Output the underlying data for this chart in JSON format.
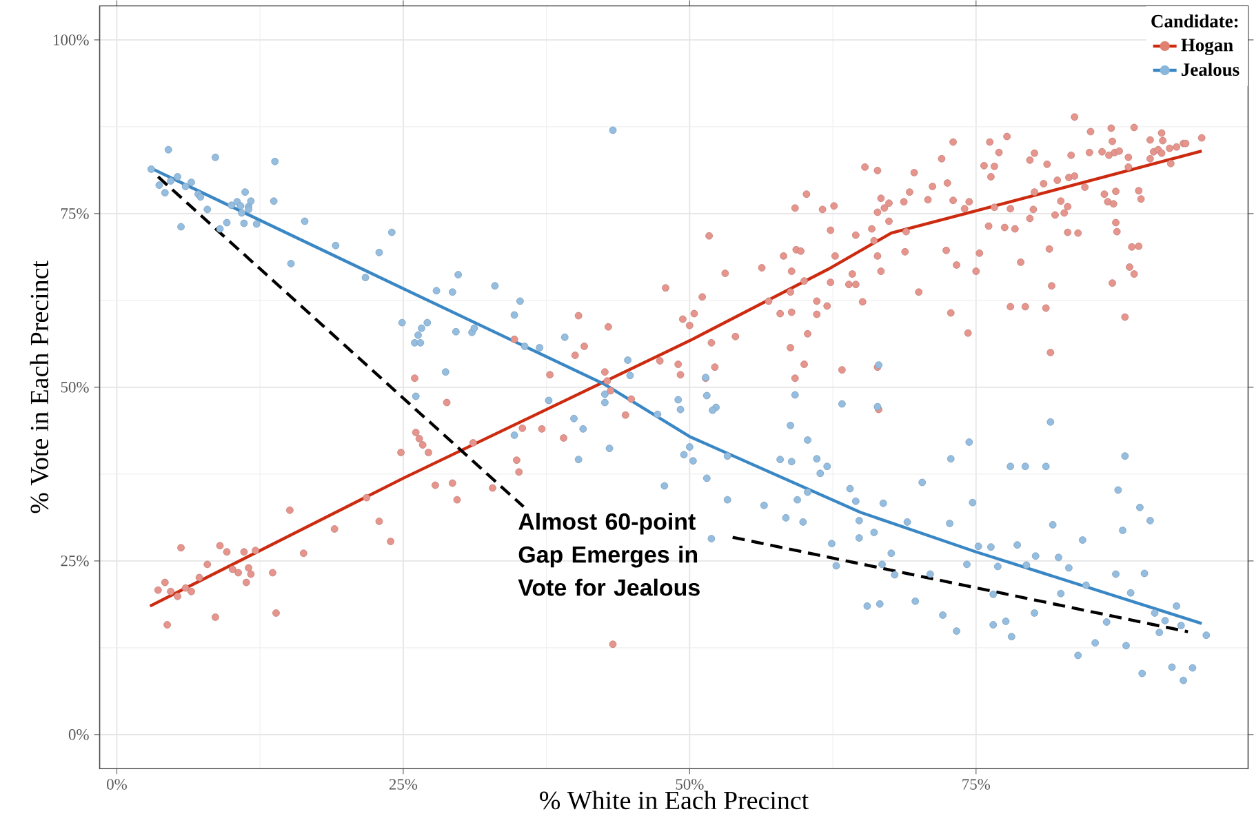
{
  "chart_data": {
    "type": "scatter",
    "xlabel": "% White in Each Precinct",
    "ylabel": "% Vote in Each Precinct",
    "legend_title": "Candidate:",
    "xlim": [
      -1.5,
      98.75
    ],
    "ylim": [
      -4.9,
      104.9
    ],
    "xticks": [
      {
        "value": 0,
        "label": "0%"
      },
      {
        "value": 25,
        "label": "25%"
      },
      {
        "value": 50,
        "label": "50%"
      },
      {
        "value": 75,
        "label": "75%"
      }
    ],
    "yticks": [
      {
        "value": 0,
        "label": "0%"
      },
      {
        "value": 25,
        "label": "25%"
      },
      {
        "value": 50,
        "label": "50%"
      },
      {
        "value": 75,
        "label": "75%"
      },
      {
        "value": 100,
        "label": "100%"
      }
    ],
    "grid": true,
    "legend": "top right",
    "annotations": [
      "Almost 60-point Gap Emerges in Vote for Jealous"
    ],
    "series": [
      {
        "marker": "circle",
        "color": "#e6958d",
        "x": [
          3.6,
          4.2,
          4.4,
          4.7,
          5.3,
          5.6,
          6.0,
          6.5,
          7.2,
          7.9,
          8.6,
          9.0,
          9.6,
          10.1,
          10.6,
          11.1,
          11.3,
          11.5,
          11.7,
          12.1,
          13.6,
          13.9,
          15.1,
          16.3,
          19.0,
          21.8,
          22.9,
          23.9,
          24.8,
          26.0,
          26.1,
          26.4,
          26.7,
          27.2,
          27.8,
          28.8,
          29.3,
          29.7,
          31.1,
          32.8,
          34.7,
          34.9,
          35.1,
          35.4,
          37.1,
          37.8,
          39.0,
          40.0,
          40.3,
          40.8,
          42.6,
          42.8,
          42.9,
          43.1,
          43.3,
          44.4,
          44.9,
          47.4,
          47.9,
          49.0,
          49.2,
          49.4,
          50.0,
          50.4,
          51.1,
          51.4,
          51.7,
          51.9,
          52.2,
          53.1,
          54.0,
          56.3,
          56.9,
          57.9,
          58.2,
          58.8,
          58.8,
          58.9,
          58.9,
          59.2,
          59.2,
          59.3,
          59.7,
          60.0,
          60.0,
          60.2,
          60.3,
          61.1,
          61.1,
          61.6,
          62.0,
          62.3,
          62.3,
          62.6,
          62.7,
          63.3,
          63.9,
          64.2,
          64.5,
          64.5,
          65.1,
          65.3,
          65.9,
          66.1,
          66.4,
          66.4,
          66.4,
          66.5,
          66.4,
          66.7,
          66.7,
          67.0,
          67.4,
          67.4,
          68.7,
          68.8,
          68.9,
          69.2,
          69.6,
          70.0,
          70.8,
          71.2,
          72.0,
          72.4,
          72.5,
          72.8,
          73.0,
          73.0,
          73.3,
          74.0,
          74.3,
          74.4,
          75.0,
          75.3,
          75.7,
          76.1,
          76.2,
          76.3,
          76.6,
          76.6,
          77.0,
          77.5,
          77.7,
          78.0,
          78.0,
          78.4,
          78.9,
          79.3,
          79.7,
          79.7,
          80.0,
          80.1,
          80.1,
          80.9,
          81.1,
          81.2,
          81.4,
          81.5,
          81.6,
          81.9,
          82.1,
          82.4,
          82.7,
          83.0,
          83.0,
          83.1,
          83.3,
          83.6,
          83.6,
          83.9,
          84.5,
          84.9,
          85.0,
          86.0,
          86.2,
          86.5,
          86.6,
          86.8,
          86.9,
          86.9,
          87.0,
          87.1,
          87.2,
          87.2,
          87.3,
          87.5,
          88.0,
          88.3,
          88.3,
          88.4,
          88.6,
          88.8,
          88.8,
          89.2,
          89.2,
          89.4,
          90.2,
          90.2,
          90.5,
          90.9,
          91.2,
          91.3,
          91.2,
          91.9,
          92.0,
          92.5,
          93.1,
          93.3,
          94.7
        ],
        "values": [
          20.8,
          21.9,
          15.8,
          20.6,
          19.9,
          26.9,
          21.1,
          20.6,
          22.6,
          24.5,
          16.9,
          27.2,
          26.3,
          23.8,
          23.3,
          26.3,
          21.9,
          24.0,
          23.1,
          26.5,
          23.3,
          17.5,
          32.3,
          26.1,
          29.6,
          34.1,
          30.7,
          27.8,
          40.6,
          51.3,
          43.5,
          42.6,
          41.7,
          40.6,
          35.9,
          47.8,
          36.2,
          33.8,
          42.0,
          35.5,
          56.9,
          39.5,
          37.8,
          44.1,
          44.0,
          51.8,
          42.7,
          54.6,
          60.3,
          55.9,
          52.2,
          50.9,
          58.7,
          49.5,
          13.0,
          46.0,
          48.3,
          53.8,
          64.3,
          53.3,
          51.8,
          59.8,
          58.9,
          60.6,
          63.0,
          51.3,
          71.8,
          56.4,
          52.9,
          66.4,
          57.3,
          67.2,
          62.4,
          60.6,
          68.9,
          55.7,
          63.7,
          60.8,
          66.7,
          75.8,
          51.3,
          69.8,
          69.6,
          53.3,
          65.3,
          77.8,
          57.7,
          60.5,
          62.4,
          75.6,
          61.7,
          72.6,
          65.1,
          76.1,
          68.9,
          52.5,
          64.8,
          66.3,
          71.9,
          64.8,
          62.3,
          81.7,
          72.8,
          71.1,
          68.9,
          75.2,
          52.9,
          46.8,
          81.2,
          66.7,
          77.2,
          75.8,
          73.9,
          76.5,
          76.7,
          69.5,
          72.4,
          78.1,
          80.9,
          63.7,
          77.0,
          78.9,
          82.9,
          69.7,
          79.4,
          60.7,
          85.3,
          76.9,
          67.6,
          75.7,
          57.8,
          76.7,
          66.7,
          69.3,
          81.9,
          73.2,
          85.3,
          80.3,
          81.8,
          75.9,
          83.8,
          73.0,
          86.1,
          61.6,
          75.7,
          72.8,
          68.0,
          61.6,
          74.3,
          82.7,
          75.6,
          78.1,
          83.7,
          79.3,
          61.4,
          82.1,
          69.9,
          55.0,
          64.6,
          74.8,
          79.8,
          76.8,
          75.1,
          72.3,
          76.0,
          80.2,
          83.4,
          80.4,
          88.9,
          72.2,
          78.8,
          83.8,
          86.8,
          83.9,
          77.8,
          76.7,
          83.4,
          87.3,
          85.4,
          65.0,
          76.4,
          83.8,
          73.7,
          78.2,
          72.4,
          84.0,
          60.1,
          83.1,
          81.7,
          67.3,
          70.2,
          87.4,
          66.3,
          70.3,
          78.3,
          77.1,
          85.6,
          82.9,
          83.9,
          84.2,
          86.6,
          85.5,
          83.7,
          84.4,
          82.2,
          84.6,
          85.1,
          85.1,
          85.9
        ]
      },
      {
        "marker": "circle",
        "color": "#94bde0",
        "x": [
          3.0,
          3.7,
          4.2,
          4.5,
          4.7,
          5.3,
          5.6,
          6.0,
          6.5,
          7.1,
          7.3,
          7.9,
          8.6,
          9.0,
          9.6,
          10.0,
          10.5,
          10.8,
          10.9,
          11.1,
          11.2,
          11.5,
          11.5,
          11.7,
          12.2,
          13.7,
          13.8,
          15.2,
          16.4,
          19.1,
          21.7,
          22.9,
          24.0,
          24.9,
          26.0,
          26.3,
          26.5,
          26.6,
          27.1,
          26.1,
          27.9,
          28.7,
          29.3,
          29.6,
          29.8,
          31.0,
          31.2,
          33.0,
          34.7,
          35.2,
          35.6,
          36.9,
          34.7,
          37.7,
          39.1,
          39.9,
          40.7,
          40.3,
          42.6,
          42.6,
          43.0,
          43.3,
          44.6,
          44.8,
          51.4,
          51.5,
          49.2,
          49.0,
          52.3,
          52.0,
          47.2,
          50.0,
          49.5,
          50.3,
          53.3,
          59.2,
          58.8,
          60.3,
          57.9,
          58.9,
          61.1,
          62.0,
          63.3,
          66.4,
          66.5,
          72.8,
          74.4,
          78.0,
          79.3,
          81.1,
          81.5,
          88.0,
          47.8,
          51.5,
          53.3,
          51.9,
          56.5,
          58.4,
          59.4,
          59.9,
          61.4,
          60.3,
          62.4,
          62.8,
          64.0,
          64.5,
          64.8,
          64.8,
          65.5,
          66.1,
          66.6,
          66.8,
          66.9,
          67.6,
          67.9,
          69.0,
          69.7,
          70.3,
          71.0,
          72.1,
          72.7,
          73.3,
          74.2,
          74.7,
          75.2,
          76.3,
          76.5,
          76.5,
          76.9,
          77.6,
          78.1,
          78.6,
          79.4,
          80.1,
          80.2,
          81.7,
          82.2,
          82.4,
          83.1,
          83.9,
          84.3,
          84.6,
          85.4,
          86.4,
          87.2,
          87.4,
          87.8,
          88.1,
          88.5,
          89.3,
          89.5,
          89.7,
          90.6,
          91.0,
          91.5,
          92.1,
          92.5,
          92.9,
          93.1,
          93.9,
          95.1,
          90.2
        ],
        "values": [
          81.4,
          79.1,
          78.0,
          84.2,
          79.7,
          80.3,
          73.1,
          78.9,
          79.5,
          77.8,
          77.4,
          75.6,
          83.1,
          72.8,
          73.7,
          76.2,
          76.7,
          76.1,
          75.1,
          73.6,
          78.1,
          76.0,
          75.6,
          76.8,
          73.5,
          76.8,
          82.5,
          67.8,
          73.9,
          70.4,
          65.8,
          69.4,
          72.3,
          59.3,
          56.4,
          57.5,
          56.4,
          58.5,
          59.3,
          48.7,
          63.9,
          52.2,
          63.7,
          58.0,
          66.2,
          57.9,
          58.5,
          64.6,
          60.4,
          62.4,
          55.9,
          55.7,
          43.1,
          48.1,
          57.2,
          45.5,
          44.0,
          39.6,
          49.0,
          47.8,
          41.2,
          87.0,
          53.9,
          51.7,
          51.4,
          48.8,
          46.8,
          48.2,
          47.1,
          46.7,
          46.1,
          41.4,
          40.3,
          39.4,
          40.1,
          48.9,
          44.5,
          42.4,
          39.6,
          39.3,
          39.7,
          38.6,
          47.6,
          47.2,
          53.2,
          39.7,
          42.1,
          38.6,
          38.6,
          38.6,
          45.0,
          40.1,
          35.8,
          36.9,
          33.8,
          28.2,
          33.0,
          31.2,
          33.8,
          30.6,
          37.6,
          34.9,
          27.5,
          24.3,
          35.4,
          33.6,
          30.8,
          28.3,
          18.5,
          29.1,
          18.8,
          24.5,
          33.3,
          26.1,
          23.0,
          30.6,
          19.2,
          36.3,
          23.1,
          17.2,
          30.4,
          14.9,
          24.5,
          33.4,
          27.1,
          27.0,
          20.2,
          15.8,
          24.2,
          16.3,
          14.1,
          27.3,
          24.4,
          17.5,
          25.7,
          30.2,
          25.5,
          20.3,
          24.0,
          11.4,
          28.0,
          21.5,
          13.2,
          16.2,
          23.1,
          35.2,
          29.4,
          12.8,
          20.4,
          32.7,
          8.8,
          23.2,
          17.5,
          14.7,
          16.4,
          9.7,
          18.5,
          15.7,
          7.8,
          9.6,
          14.3,
          30.8
        ]
      },
      {
        "type": "line",
        "marker": "none",
        "name": "Hogan",
        "color": "#cc2b10",
        "x": [
          2.9,
          25,
          50,
          62.1,
          67.6,
          75,
          94.7
        ],
        "values": [
          18.5,
          36.9,
          56.7,
          67.0,
          72.2,
          75.4,
          84.0
        ]
      },
      {
        "type": "line",
        "marker": "none",
        "name": "Jealous",
        "color": "#3a87c5",
        "x": [
          2.9,
          25,
          42.6,
          50,
          64.9,
          75,
          94.7
        ],
        "values": [
          81.6,
          64.2,
          50.4,
          42.9,
          32.0,
          26.3,
          16.0
        ]
      },
      {
        "type": "line",
        "marker": "none",
        "color": "#000000",
        "line_style": "dashed",
        "x": [
          3.6,
          35.5,
          44,
          53.75,
          93.5
        ],
        "values": [
          80.3,
          32.8,
          null,
          28.4,
          14.8
        ]
      }
    ]
  }
}
